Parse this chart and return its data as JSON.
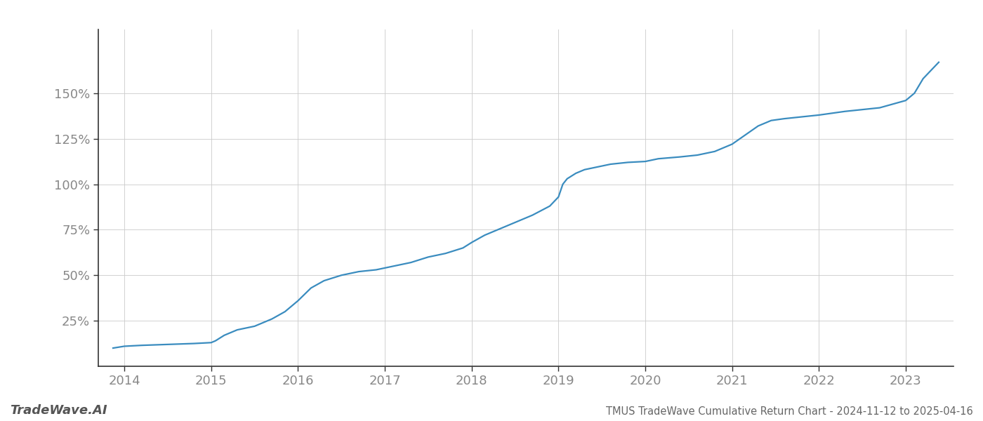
{
  "title": "TMUS TradeWave Cumulative Return Chart - 2024-11-12 to 2025-04-16",
  "watermark": "TradeWave.AI",
  "line_color": "#3a8cbf",
  "background_color": "#ffffff",
  "grid_color": "#cccccc",
  "x_years": [
    2014,
    2015,
    2016,
    2017,
    2018,
    2019,
    2020,
    2021,
    2022,
    2023
  ],
  "data_points": {
    "2013.87": 10,
    "2014.0": 11,
    "2014.2": 11.5,
    "2014.5": 12,
    "2014.8": 12.5,
    "2015.0": 13,
    "2015.05": 14,
    "2015.15": 17,
    "2015.3": 20,
    "2015.5": 22,
    "2015.7": 26,
    "2015.85": 30,
    "2016.0": 36,
    "2016.15": 43,
    "2016.3": 47,
    "2016.5": 50,
    "2016.7": 52,
    "2016.9": 53,
    "2017.1": 55,
    "2017.3": 57,
    "2017.5": 60,
    "2017.7": 62,
    "2017.9": 65,
    "2018.0": 68,
    "2018.15": 72,
    "2018.3": 75,
    "2018.5": 79,
    "2018.7": 83,
    "2018.9": 88,
    "2019.0": 93,
    "2019.05": 100,
    "2019.1": 103,
    "2019.2": 106,
    "2019.3": 108,
    "2019.4": 109,
    "2019.5": 110,
    "2019.6": 111,
    "2019.8": 112,
    "2020.0": 112.5,
    "2020.15": 114,
    "2020.4": 115,
    "2020.6": 116,
    "2020.8": 118,
    "2021.0": 122,
    "2021.15": 127,
    "2021.3": 132,
    "2021.45": 135,
    "2021.6": 136,
    "2021.8": 137,
    "2022.0": 138,
    "2022.15": 139,
    "2022.3": 140,
    "2022.5": 141,
    "2022.7": 142,
    "2022.85": 144,
    "2023.0": 146,
    "2023.1": 150,
    "2023.2": 158,
    "2023.3": 163,
    "2023.38": 167
  },
  "ylim": [
    0,
    185
  ],
  "yticks": [
    25,
    50,
    75,
    100,
    125,
    150
  ],
  "xlim": [
    2013.7,
    2023.55
  ],
  "title_fontsize": 10.5,
  "tick_fontsize": 13,
  "watermark_fontsize": 13,
  "title_color": "#666666",
  "tick_color": "#888888",
  "spine_color": "#333333",
  "line_width": 1.6
}
